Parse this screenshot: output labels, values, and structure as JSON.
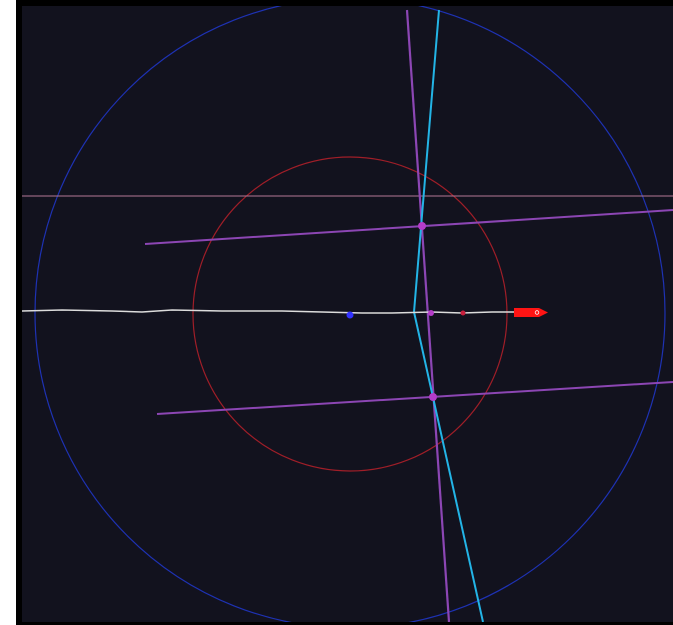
{
  "colors": {
    "background": "#12121e",
    "frame": "#000000",
    "outer_ring": "#1e32b4",
    "inner_ring": "#a01e28",
    "horizontal_guide": "#b47896",
    "purple_line": "#8c46b4",
    "cyan_path": "#23b4e6",
    "white_track": "#dcdcdc",
    "ship": "#ff1414",
    "center_dot": "#3232ff",
    "marker_dot": "#b43cc8",
    "red_dot": "#c81e3c"
  },
  "icons": {
    "ship": "ship-icon",
    "center": "center-dot-icon"
  }
}
